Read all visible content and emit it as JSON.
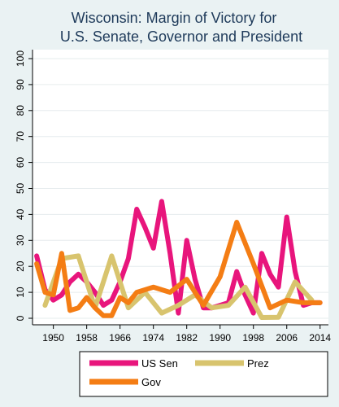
{
  "chart_data": {
    "type": "line",
    "title": "Wisconsin: Margin of Victory for",
    "subtitle": "U.S. Senate, Governor and President",
    "xlabel": "",
    "ylabel": "",
    "xlim": [
      1945,
      2016
    ],
    "ylim": [
      0,
      100
    ],
    "xticks": [
      1950,
      1958,
      1966,
      1974,
      1982,
      1990,
      1998,
      2006,
      2014
    ],
    "yticks": [
      0,
      10,
      20,
      30,
      40,
      50,
      60,
      70,
      80,
      90,
      100
    ],
    "grid": true,
    "legend_position": "bottom",
    "series": [
      {
        "name": "US Sen",
        "color": "#e8157c",
        "x": [
          1946,
          1948,
          1950,
          1952,
          1954,
          1956,
          1958,
          1960,
          1962,
          1964,
          1966,
          1968,
          1970,
          1972,
          1974,
          1976,
          1978,
          1980,
          1982,
          1984,
          1986,
          1988,
          1990,
          1992,
          1994,
          1996,
          1998,
          2000,
          2002,
          2004,
          2006,
          2008,
          2010,
          2012,
          2014
        ],
        "values": [
          24,
          11,
          7,
          9,
          14,
          17,
          14,
          10,
          5,
          7,
          14,
          23,
          42,
          35,
          27,
          45,
          25,
          2,
          30,
          15,
          4,
          4,
          5,
          6,
          18,
          9,
          2,
          25,
          17,
          12,
          39,
          18,
          5,
          6,
          6
        ]
      },
      {
        "name": "Prez",
        "color": "#d8c46e",
        "x": [
          1948,
          1952,
          1956,
          1960,
          1964,
          1968,
          1972,
          1976,
          1980,
          1984,
          1988,
          1992,
          1996,
          2000,
          2004,
          2008,
          2012
        ],
        "values": [
          5,
          23,
          24,
          4,
          24,
          4,
          10,
          2,
          5,
          9,
          4,
          5,
          12,
          0.3,
          0.4,
          14,
          7
        ]
      },
      {
        "name": "Gov",
        "color": "#f47d14",
        "x": [
          1946,
          1948,
          1950,
          1952,
          1954,
          1956,
          1958,
          1960,
          1962,
          1964,
          1966,
          1968,
          1970,
          1974,
          1978,
          1982,
          1986,
          1990,
          1994,
          1998,
          2002,
          2006,
          2010,
          2014
        ],
        "values": [
          21,
          10,
          9,
          25,
          3,
          4,
          8,
          4,
          1,
          1,
          8,
          6,
          10,
          12,
          10,
          15,
          5,
          16,
          37,
          21,
          4,
          7,
          6,
          6
        ]
      }
    ]
  }
}
